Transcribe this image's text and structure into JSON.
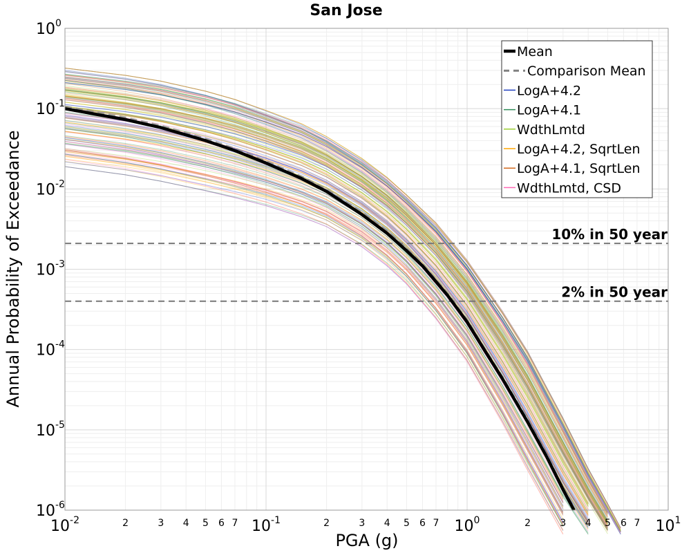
{
  "chart_data": {
    "type": "line",
    "title": "San Jose",
    "xlabel": "PGA (g)",
    "ylabel": "Annual Probability of Exceedance",
    "x_scale": "log",
    "y_scale": "log",
    "xlim": [
      0.01,
      10
    ],
    "ylim": [
      1e-06,
      1
    ],
    "grid": true,
    "legend_position": "top-right",
    "x_major_ticks": [
      {
        "value": 0.01,
        "base": "10",
        "exp": "-2"
      },
      {
        "value": 0.1,
        "base": "10",
        "exp": "-1"
      },
      {
        "value": 1,
        "base": "10",
        "exp": "0"
      },
      {
        "value": 10,
        "base": "10",
        "exp": "1"
      }
    ],
    "x_minor_tick_labels": [
      "2",
      "3",
      "4",
      "5",
      "6",
      "7"
    ],
    "y_major_ticks": [
      {
        "value": 1,
        "base": "10",
        "exp": "0"
      },
      {
        "value": 0.1,
        "base": "10",
        "exp": "-1"
      },
      {
        "value": 0.01,
        "base": "10",
        "exp": "-2"
      },
      {
        "value": 0.001,
        "base": "10",
        "exp": "-3"
      },
      {
        "value": 0.0001,
        "base": "10",
        "exp": "-4"
      },
      {
        "value": 1e-05,
        "base": "10",
        "exp": "-5"
      },
      {
        "value": 1e-06,
        "base": "10",
        "exp": "-6"
      }
    ],
    "reference_lines": [
      {
        "label": "10% in 50 year",
        "y": 0.0021
      },
      {
        "label": "2% in 50 year",
        "y": 0.0004
      }
    ],
    "mean_curve": {
      "name": "Mean",
      "x": [
        0.01,
        0.02,
        0.03,
        0.05,
        0.07,
        0.1,
        0.15,
        0.2,
        0.3,
        0.4,
        0.5,
        0.6,
        0.7,
        0.8,
        1.0,
        1.2,
        1.5,
        2.0,
        2.5,
        3.0,
        3.4
      ],
      "y": [
        0.1,
        0.073,
        0.058,
        0.04,
        0.03,
        0.021,
        0.0135,
        0.0093,
        0.0048,
        0.0028,
        0.0017,
        0.0011,
        0.0007,
        0.00047,
        0.00022,
        0.000105,
        4.3e-05,
        1.25e-05,
        4.5e-06,
        1.8e-06,
        1e-06
      ]
    },
    "series": [
      {
        "name": "Comparison Mean",
        "color": "#808080",
        "style": "dashed"
      },
      {
        "name": "LogA+4.2",
        "color": "#1f3fbf"
      },
      {
        "name": "LogA+4.1",
        "color": "#2e8b57"
      },
      {
        "name": "WdthLmtd",
        "color": "#9acd32"
      },
      {
        "name": "LogA+4.2, SqrtLen",
        "color": "#ffa500"
      },
      {
        "name": "LogA+4.1, SqrtLen",
        "color": "#d2691e"
      },
      {
        "name": "WdthLmtd, CSD",
        "color": "#ff69b4"
      }
    ],
    "envelope": {
      "x": [
        0.01,
        0.02,
        0.03,
        0.05,
        0.07,
        0.1,
        0.15,
        0.2,
        0.3,
        0.4,
        0.5,
        0.7,
        1.0,
        1.5,
        2.0,
        3.0,
        4.0,
        5.0,
        5.8
      ],
      "y_upper": [
        0.32,
        0.26,
        0.22,
        0.165,
        0.13,
        0.095,
        0.065,
        0.045,
        0.024,
        0.014,
        0.0085,
        0.0038,
        0.0013,
        0.0003,
        9.5e-05,
        1.4e-05,
        3.3e-06,
        1.2e-06,
        6e-07
      ],
      "y_lower": [
        0.019,
        0.015,
        0.0125,
        0.0095,
        0.0078,
        0.0062,
        0.0045,
        0.0034,
        0.0019,
        0.0011,
        0.00065,
        0.00024,
        7e-05,
        1.2e-05,
        3.1e-06,
        5e-07,
        2e-07,
        1e-07,
        8e-08
      ]
    }
  }
}
